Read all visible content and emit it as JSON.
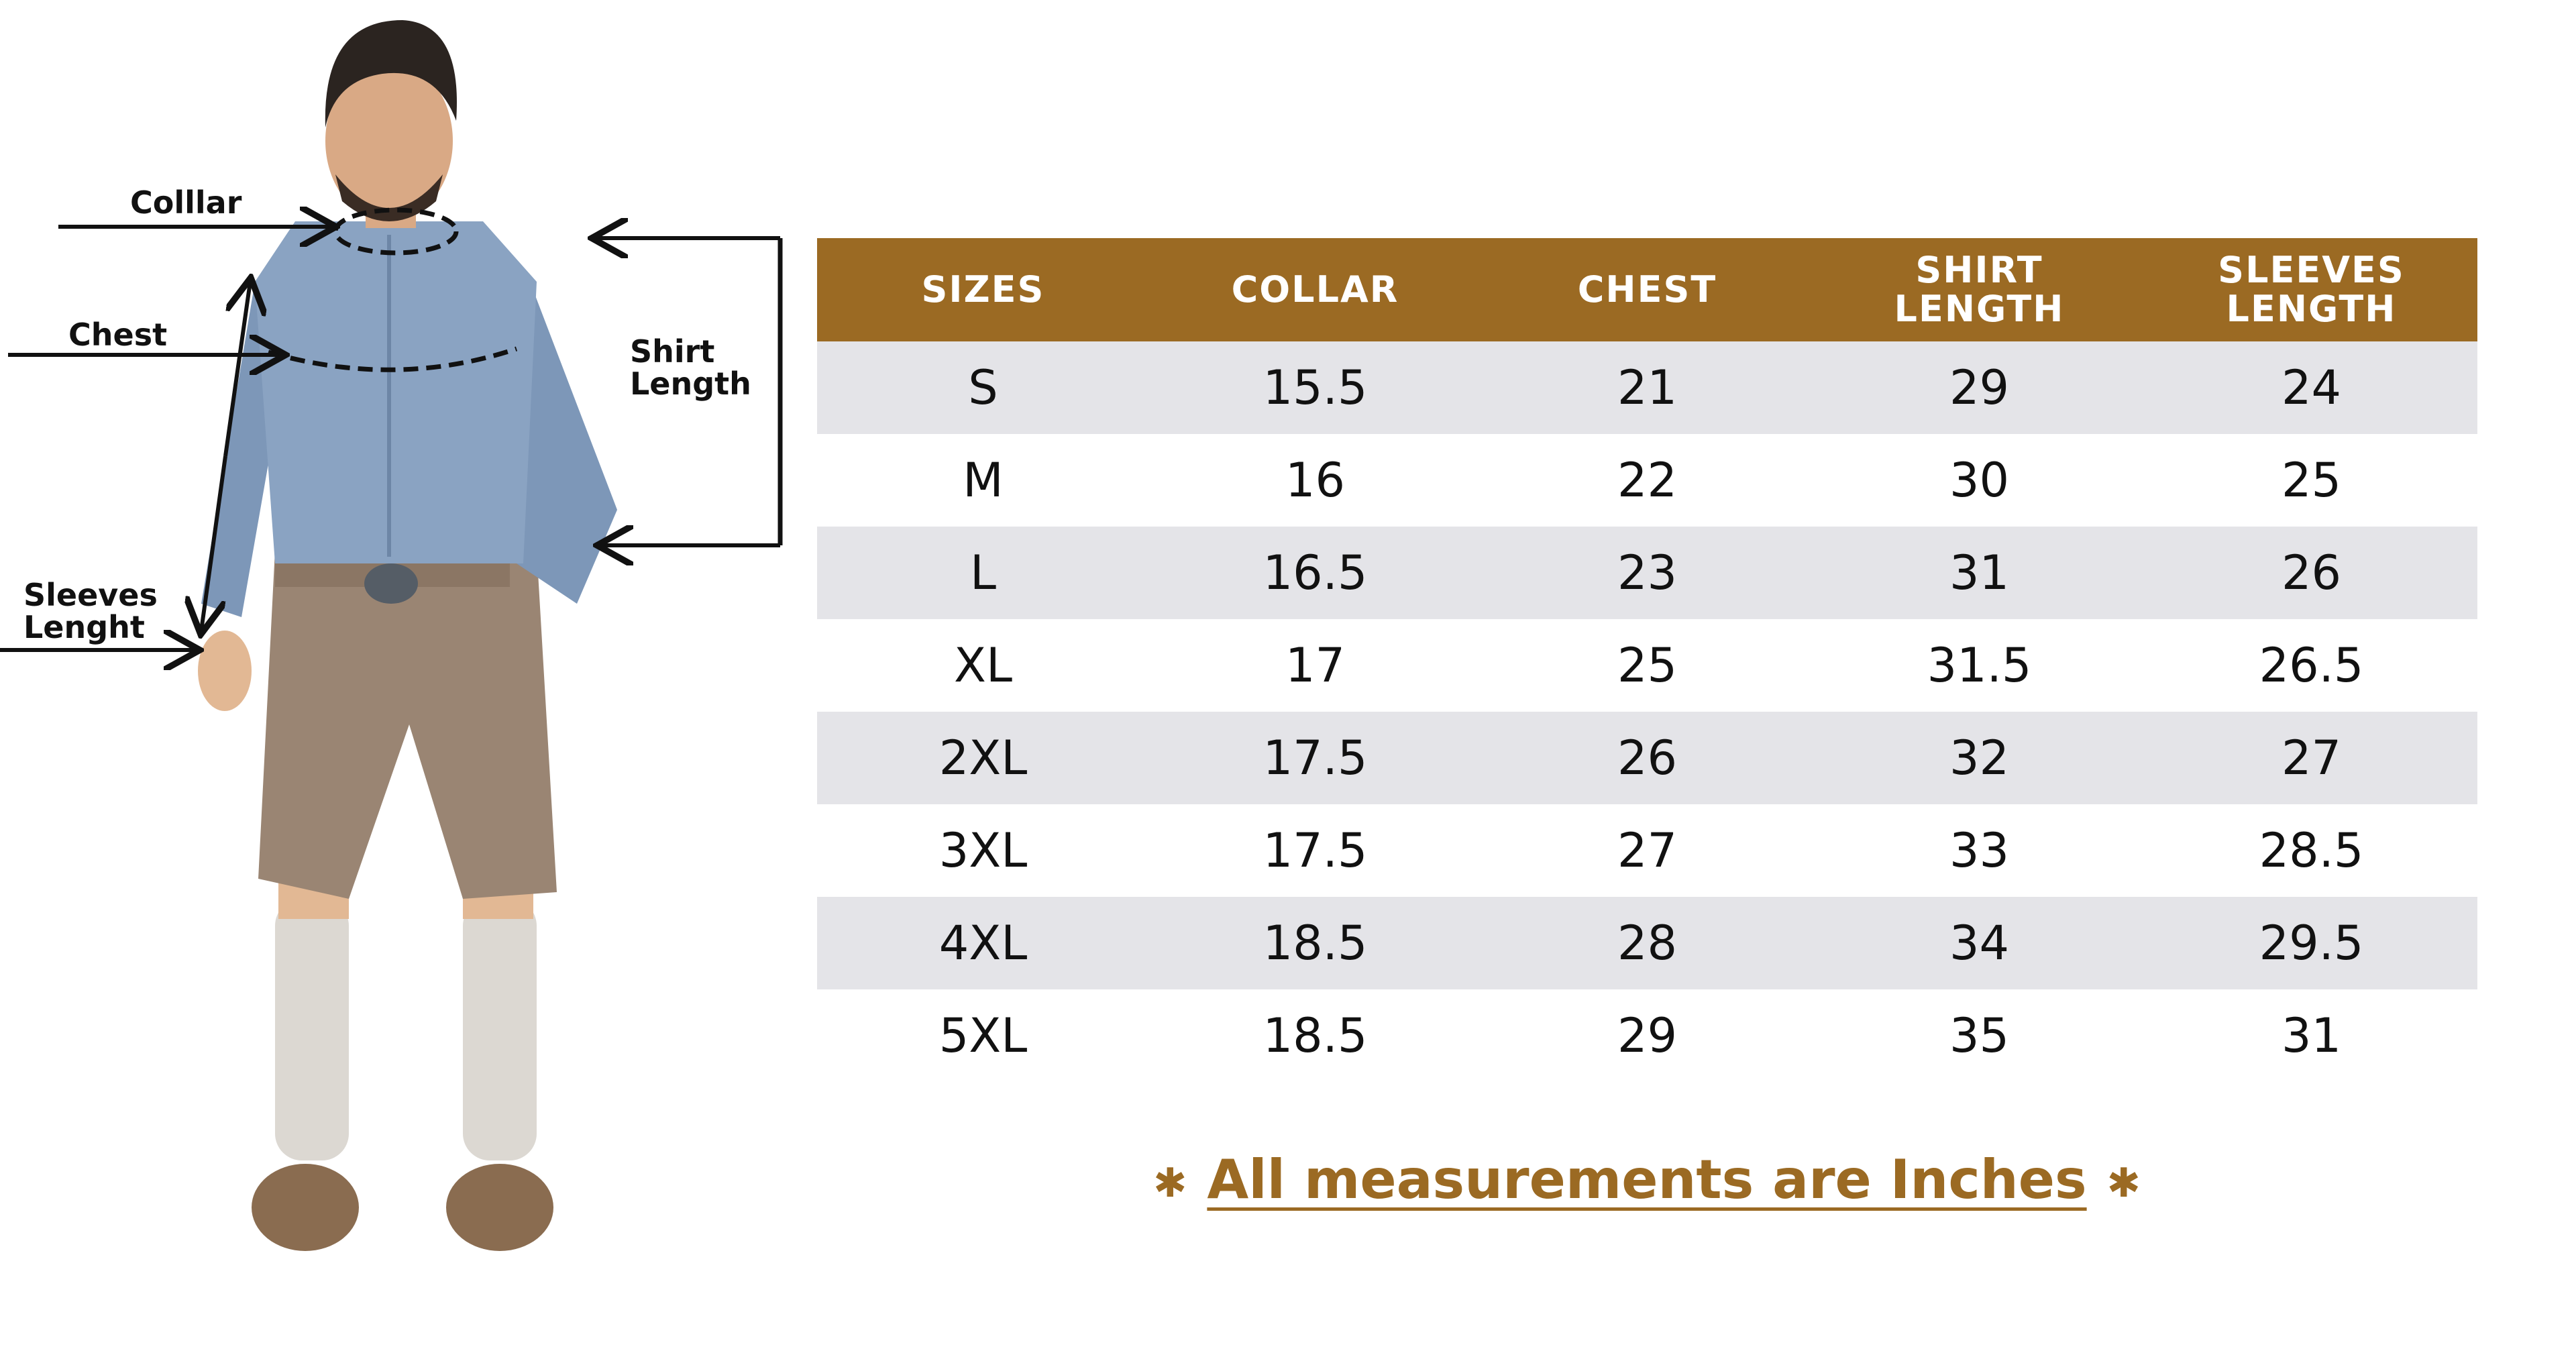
{
  "diagram_labels": {
    "collar": "Colllar",
    "chest": "Chest",
    "shirt_length": "Shirt Length",
    "sleeves_length": "Sleeves Lenght"
  },
  "table": {
    "headers": [
      "SIZES",
      "COLLAR",
      "CHEST",
      "SHIRT LENGTH",
      "SLEEVES LENGTH"
    ],
    "rows": [
      [
        "S",
        "15.5",
        "21",
        "29",
        "24"
      ],
      [
        "M",
        "16",
        "22",
        "30",
        "25"
      ],
      [
        "L",
        "16.5",
        "23",
        "31",
        "26"
      ],
      [
        "XL",
        "17",
        "25",
        "31.5",
        "26.5"
      ],
      [
        "2XL",
        "17.5",
        "26",
        "32",
        "27"
      ],
      [
        "3XL",
        "17.5",
        "27",
        "33",
        "28.5"
      ],
      [
        "4XL",
        "18.5",
        "28",
        "34",
        "29.5"
      ],
      [
        "5XL",
        "18.5",
        "29",
        "35",
        "31"
      ]
    ]
  },
  "footnote": "All measurements are Inches"
}
